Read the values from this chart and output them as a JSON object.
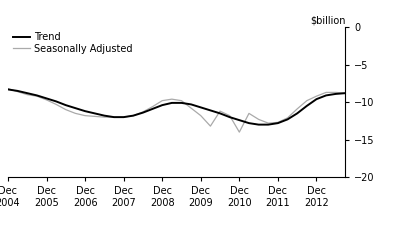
{
  "trend_x": [
    2004.0,
    2004.25,
    2004.5,
    2004.75,
    2005.0,
    2005.25,
    2005.5,
    2005.75,
    2006.0,
    2006.25,
    2006.5,
    2006.75,
    2007.0,
    2007.25,
    2007.5,
    2007.75,
    2008.0,
    2008.25,
    2008.5,
    2008.75,
    2009.0,
    2009.25,
    2009.5,
    2009.75,
    2010.0,
    2010.25,
    2010.5,
    2010.75,
    2011.0,
    2011.25,
    2011.5,
    2011.75,
    2012.0,
    2012.25,
    2012.5,
    2012.75
  ],
  "trend_y": [
    -8.3,
    -8.5,
    -8.8,
    -9.1,
    -9.5,
    -9.9,
    -10.4,
    -10.8,
    -11.2,
    -11.5,
    -11.8,
    -12.0,
    -12.0,
    -11.8,
    -11.4,
    -10.9,
    -10.4,
    -10.1,
    -10.1,
    -10.3,
    -10.7,
    -11.1,
    -11.5,
    -12.0,
    -12.4,
    -12.8,
    -13.0,
    -13.0,
    -12.8,
    -12.3,
    -11.5,
    -10.5,
    -9.6,
    -9.1,
    -8.9,
    -8.8
  ],
  "sa_x": [
    2004.0,
    2004.25,
    2004.5,
    2004.75,
    2005.0,
    2005.25,
    2005.5,
    2005.75,
    2006.0,
    2006.25,
    2006.5,
    2006.75,
    2007.0,
    2007.25,
    2007.5,
    2007.75,
    2008.0,
    2008.25,
    2008.5,
    2008.75,
    2009.0,
    2009.25,
    2009.5,
    2009.75,
    2010.0,
    2010.25,
    2010.5,
    2010.75,
    2011.0,
    2011.25,
    2011.5,
    2011.75,
    2012.0,
    2012.25,
    2012.5,
    2012.75
  ],
  "sa_y": [
    -8.2,
    -8.6,
    -9.0,
    -9.2,
    -9.7,
    -10.3,
    -11.0,
    -11.5,
    -11.8,
    -11.9,
    -12.0,
    -12.0,
    -12.0,
    -11.8,
    -11.3,
    -10.6,
    -9.8,
    -9.6,
    -9.8,
    -10.8,
    -11.8,
    -13.2,
    -11.2,
    -11.8,
    -14.0,
    -11.5,
    -12.3,
    -12.8,
    -12.7,
    -12.1,
    -10.9,
    -9.8,
    -9.2,
    -8.7,
    -8.7,
    -8.8
  ],
  "trend_color": "#000000",
  "sa_color": "#aaaaaa",
  "xlim": [
    2004.0,
    2012.75
  ],
  "ylim": [
    -20,
    0
  ],
  "yticks": [
    0,
    -5,
    -10,
    -15,
    -20
  ],
  "xtick_positions": [
    2004.0,
    2005.0,
    2006.0,
    2007.0,
    2008.0,
    2009.0,
    2010.0,
    2011.0,
    2012.0
  ],
  "xtick_labels": [
    "Dec\n2004",
    "Dec\n2005",
    "Dec\n2006",
    "Dec\n2007",
    "Dec\n2008",
    "Dec\n2009",
    "Dec\n2010",
    "Dec\n2011",
    "Dec\n2012"
  ],
  "ylabel": "$billion",
  "legend_trend": "Trend",
  "legend_sa": "Seasonally Adjusted",
  "bg_color": "#ffffff",
  "trend_linewidth": 1.4,
  "sa_linewidth": 0.9
}
